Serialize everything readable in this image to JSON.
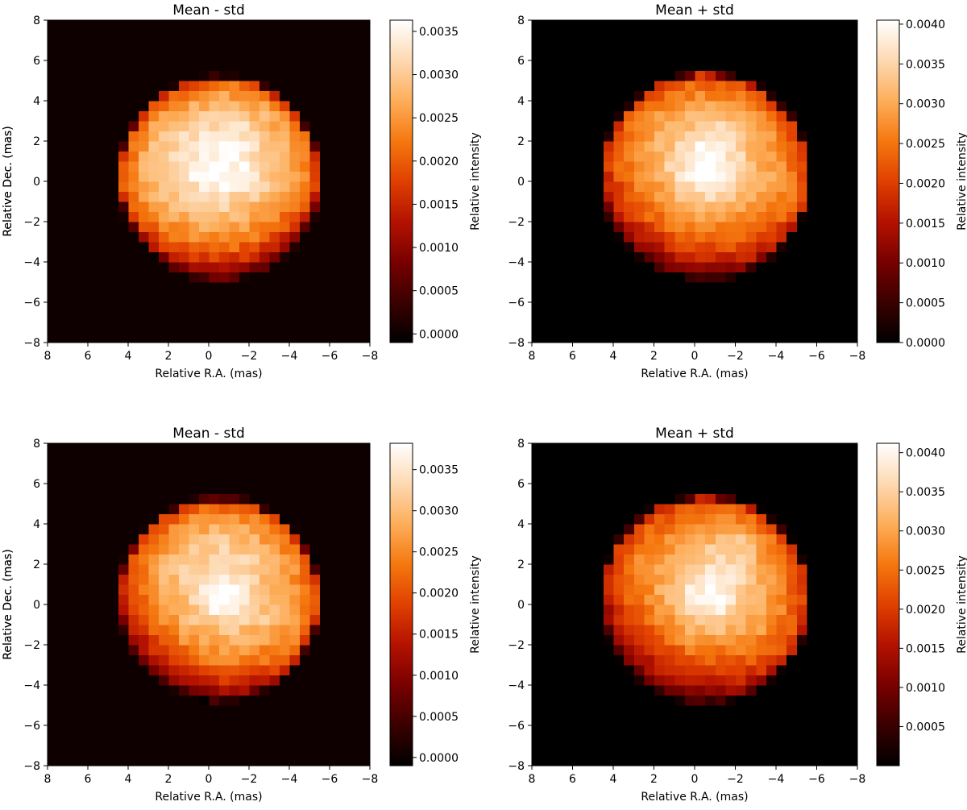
{
  "figure": {
    "colormap": "gist_heat",
    "cmap_stops": [
      "#000000",
      "#3a0000",
      "#780000",
      "#b41200",
      "#e04000",
      "#f5780f",
      "#fdae5a",
      "#fdd9b2",
      "#ffffff"
    ],
    "pixel_grid": 32,
    "pixel_size_mas": 0.5
  },
  "chart_data": [
    {
      "type": "heatmap",
      "title": "Mean - std",
      "xlabel": "Relative R.A. (mas)",
      "ylabel": "Relative Dec. (mas)",
      "xlim": [
        8,
        -8
      ],
      "ylim": [
        -8,
        8
      ],
      "xticks": [
        8,
        6,
        4,
        2,
        0,
        -2,
        -4,
        -6,
        -8
      ],
      "yticks": [
        -8,
        -6,
        -4,
        -2,
        0,
        2,
        4,
        6,
        8
      ],
      "xtick_labels": [
        "8",
        "6",
        "4",
        "2",
        "0",
        "−2",
        "−4",
        "−6",
        "−8"
      ],
      "ytick_labels": [
        "−8",
        "−6",
        "−4",
        "−2",
        "0",
        "2",
        "4",
        "6",
        "8"
      ],
      "colorbar_label": "Relative intensity",
      "colorbar_range": [
        -0.0001,
        0.00363
      ],
      "colorbar_ticks": [
        0.0,
        0.0005,
        0.001,
        0.0015,
        0.002,
        0.0025,
        0.003,
        0.0035
      ],
      "colorbar_tick_labels": [
        "0.0000",
        "0.0005",
        "0.0010",
        "0.0015",
        "0.0020",
        "0.0025",
        "0.0030",
        "0.0035"
      ],
      "background_value": 2e-05,
      "disk": {
        "center_x": -0.5,
        "center_y": 0.2,
        "radius": 4.9,
        "base_intensity": 0.0033,
        "limb_darkening": 0.55,
        "gradient": {
          "direction_x": -0.1,
          "direction_y": -1.0,
          "strength": 0.0011
        },
        "bright_spots": [
          {
            "x": -0.5,
            "y": 0.8,
            "sigma": 1.0,
            "amplitude": 0.0004
          },
          {
            "x": -1.5,
            "y": 3.0,
            "sigma": 1.0,
            "amplitude": 0.0002
          },
          {
            "x": 2.0,
            "y": 2.5,
            "sigma": 1.0,
            "amplitude": 0.0001
          }
        ]
      }
    },
    {
      "type": "heatmap",
      "title": "Mean + std",
      "xlabel": "Relative R.A. (mas)",
      "ylabel": "Relative Dec. (mas)",
      "xlim": [
        8,
        -8
      ],
      "ylim": [
        -8,
        8
      ],
      "xticks": [
        8,
        6,
        4,
        2,
        0,
        -2,
        -4,
        -6,
        -8
      ],
      "yticks": [
        -8,
        -6,
        -4,
        -2,
        0,
        2,
        4,
        6,
        8
      ],
      "xtick_labels": [
        "8",
        "6",
        "4",
        "2",
        "0",
        "−2",
        "−4",
        "−6",
        "−8"
      ],
      "ytick_labels": [
        "−8",
        "−6",
        "−4",
        "−2",
        "0",
        "2",
        "4",
        "6",
        "8"
      ],
      "colorbar_label": "Relative intensity",
      "colorbar_range": [
        0.0,
        0.00405
      ],
      "colorbar_ticks": [
        0.0,
        0.0005,
        0.001,
        0.0015,
        0.002,
        0.0025,
        0.003,
        0.0035,
        0.004
      ],
      "colorbar_tick_labels": [
        "0.0000",
        "0.0005",
        "0.0010",
        "0.0015",
        "0.0020",
        "0.0025",
        "0.0030",
        "0.0035",
        "0.0040"
      ],
      "background_value": 0.0,
      "disk": {
        "center_x": -0.5,
        "center_y": 0.3,
        "radius": 5.0,
        "base_intensity": 0.0033,
        "limb_darkening": 0.5,
        "gradient": {
          "direction_x": 0.3,
          "direction_y": -1.0,
          "strength": 0.0012
        },
        "bright_spots": [
          {
            "x": -0.5,
            "y": 0.6,
            "sigma": 1.1,
            "amplitude": 0.0008
          },
          {
            "x": -1.0,
            "y": 2.2,
            "sigma": 0.9,
            "amplitude": 0.0004
          }
        ]
      }
    },
    {
      "type": "heatmap",
      "title": "Mean - std",
      "xlabel": "Relative R.A. (mas)",
      "ylabel": "Relative Dec. (mas)",
      "xlim": [
        8,
        -8
      ],
      "ylim": [
        -8,
        8
      ],
      "xticks": [
        8,
        6,
        4,
        2,
        0,
        -2,
        -4,
        -6,
        -8
      ],
      "yticks": [
        -8,
        -6,
        -4,
        -2,
        0,
        2,
        4,
        6,
        8
      ],
      "xtick_labels": [
        "8",
        "6",
        "4",
        "2",
        "0",
        "−2",
        "−4",
        "−6",
        "−8"
      ],
      "ytick_labels": [
        "−8",
        "−6",
        "−4",
        "−2",
        "0",
        "2",
        "4",
        "6",
        "8"
      ],
      "colorbar_label": "Relative intensity",
      "colorbar_range": [
        -0.0001,
        0.00382
      ],
      "colorbar_ticks": [
        0.0,
        0.0005,
        0.001,
        0.0015,
        0.002,
        0.0025,
        0.003,
        0.0035
      ],
      "colorbar_tick_labels": [
        "0.0000",
        "0.0005",
        "0.0010",
        "0.0015",
        "0.0020",
        "0.0025",
        "0.0030",
        "0.0035"
      ],
      "background_value": 2e-05,
      "disk": {
        "center_x": -0.5,
        "center_y": 0.3,
        "radius": 4.9,
        "base_intensity": 0.0033,
        "limb_darkening": 0.55,
        "gradient": {
          "direction_x": 0.5,
          "direction_y": -1.0,
          "strength": 0.0012
        },
        "bright_spots": [
          {
            "x": -0.7,
            "y": 0.4,
            "sigma": 0.8,
            "amplitude": 0.0007
          },
          {
            "x": -1.0,
            "y": 3.0,
            "sigma": 1.0,
            "amplitude": 0.0002
          }
        ]
      }
    },
    {
      "type": "heatmap",
      "title": "Mean + std",
      "xlabel": "Relative R.A. (mas)",
      "ylabel": "Relative Dec. (mas)",
      "xlim": [
        8,
        -8
      ],
      "ylim": [
        -8,
        8
      ],
      "xticks": [
        8,
        6,
        4,
        2,
        0,
        -2,
        -4,
        -6,
        -8
      ],
      "yticks": [
        -8,
        -6,
        -4,
        -2,
        0,
        2,
        4,
        6,
        8
      ],
      "xtick_labels": [
        "8",
        "6",
        "4",
        "2",
        "0",
        "−2",
        "−4",
        "−6",
        "−8"
      ],
      "ytick_labels": [
        "−8",
        "−6",
        "−4",
        "−2",
        "0",
        "2",
        "4",
        "6",
        "8"
      ],
      "colorbar_label": "Relative intensity",
      "colorbar_range": [
        0.0,
        0.00412
      ],
      "colorbar_ticks": [
        0.0005,
        0.001,
        0.0015,
        0.002,
        0.0025,
        0.003,
        0.0035,
        0.004
      ],
      "colorbar_tick_labels": [
        "0.0005",
        "0.0010",
        "0.0015",
        "0.0020",
        "0.0025",
        "0.0030",
        "0.0035",
        "0.0040"
      ],
      "background_value": 0.0,
      "disk": {
        "center_x": -0.5,
        "center_y": 0.3,
        "radius": 5.0,
        "base_intensity": 0.0032,
        "limb_darkening": 0.5,
        "gradient": {
          "direction_x": 0.5,
          "direction_y": -1.0,
          "strength": 0.0012
        },
        "bright_spots": [
          {
            "x": -0.8,
            "y": 0.5,
            "sigma": 1.2,
            "amplitude": 0.0009
          },
          {
            "x": -2.0,
            "y": 3.0,
            "sigma": 1.0,
            "amplitude": 0.0005
          }
        ]
      }
    }
  ]
}
